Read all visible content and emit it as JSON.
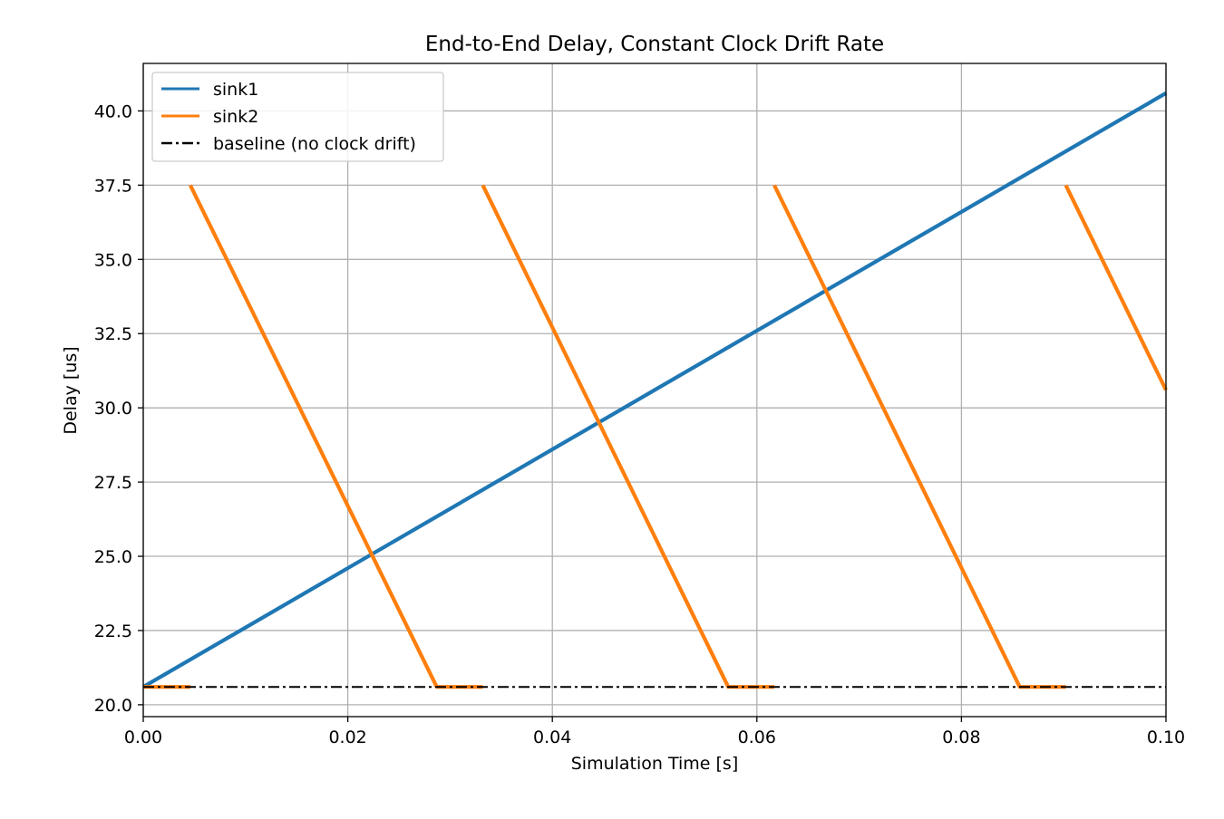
{
  "chart_data": {
    "type": "line",
    "title": "End-to-End Delay, Constant Clock Drift Rate",
    "xlabel": "Simulation Time [s]",
    "ylabel": "Delay [us]",
    "xlim": [
      0.0,
      0.1
    ],
    "ylim": [
      19.6,
      41.6
    ],
    "x_ticks": [
      0.0,
      0.02,
      0.04,
      0.06,
      0.08,
      0.1
    ],
    "x_tick_labels": [
      "0.00",
      "0.02",
      "0.04",
      "0.06",
      "0.08",
      "0.10"
    ],
    "y_ticks": [
      20.0,
      22.5,
      25.0,
      27.5,
      30.0,
      32.5,
      35.0,
      37.5,
      40.0
    ],
    "y_tick_labels": [
      "20.0",
      "22.5",
      "25.0",
      "27.5",
      "30.0",
      "32.5",
      "35.0",
      "37.5",
      "40.0"
    ],
    "grid": true,
    "legend_position": "top-left",
    "series": [
      {
        "name": "sink1",
        "color": "#1f77b4",
        "style": "solid",
        "x": [
          0.0,
          0.1
        ],
        "y": [
          20.6,
          40.6
        ]
      },
      {
        "name": "sink2",
        "color": "#ff7f0e",
        "style": "solid",
        "segments": [
          {
            "x": [
              0.0,
              0.0046
            ],
            "y": [
              20.6,
              20.6
            ]
          },
          {
            "x": [
              0.0046,
              0.0287,
              0.0332
            ],
            "y": [
              37.5,
              20.6,
              20.6
            ]
          },
          {
            "x": [
              0.0332,
              0.0572,
              0.0617
            ],
            "y": [
              37.5,
              20.6,
              20.6
            ]
          },
          {
            "x": [
              0.0617,
              0.0857,
              0.0902
            ],
            "y": [
              37.5,
              20.6,
              20.6
            ]
          },
          {
            "x": [
              0.0902,
              0.1
            ],
            "y": [
              37.5,
              30.6
            ]
          }
        ]
      },
      {
        "name": "baseline (no clock drift)",
        "color": "#000000",
        "style": "dashdot",
        "x": [
          0.0,
          0.1
        ],
        "y": [
          20.6,
          20.6
        ]
      }
    ]
  }
}
